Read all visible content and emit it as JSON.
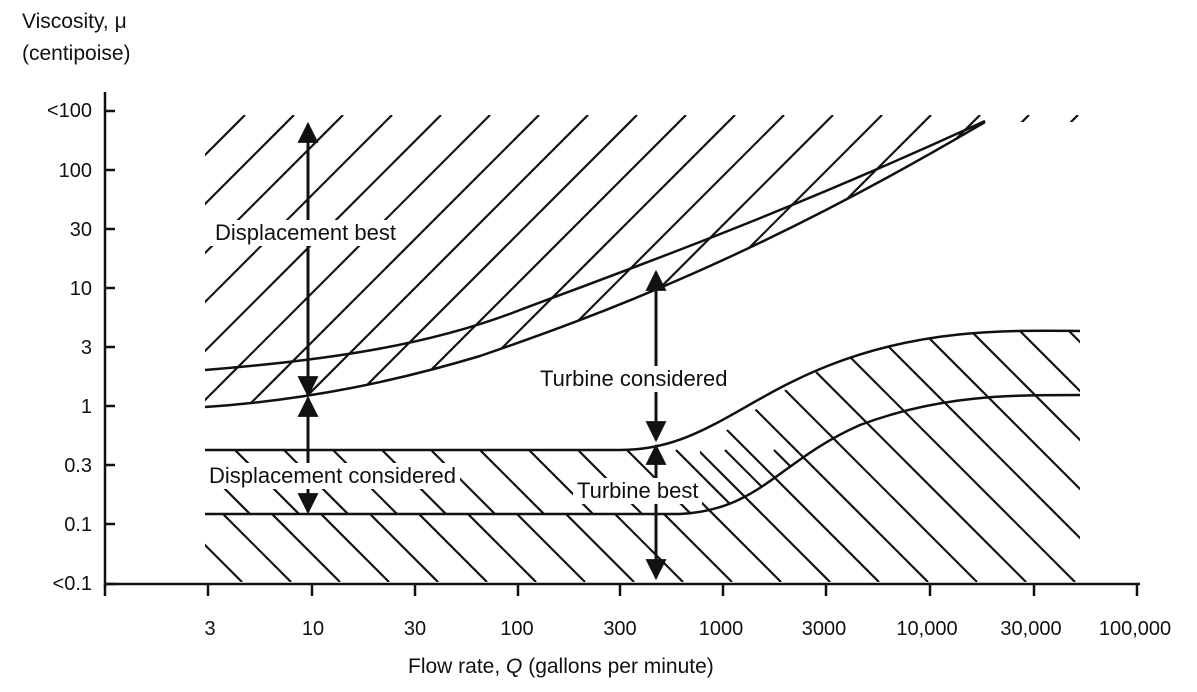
{
  "y_axis": {
    "label_line1": "Viscosity, μ",
    "label_line2": "(centipoise)",
    "ticks": [
      "<100",
      "100",
      "30",
      "10",
      "3",
      "1",
      "0.3",
      "0.1",
      "<0.1"
    ]
  },
  "x_axis": {
    "label_prefix": "Flow rate, ",
    "label_var": "Q",
    "label_suffix": " (gallons per minute)",
    "ticks": [
      "3",
      "10",
      "30",
      "100",
      "300",
      "1000",
      "3000",
      "10,000",
      "30,000",
      "100,000"
    ]
  },
  "regions": {
    "displacement_best": "Displacement best",
    "turbine_considered": "Turbine considered",
    "displacement_considered": "Displacement considered",
    "turbine_best": "Turbine best"
  },
  "colors": {
    "ink": "#111111",
    "background": "#ffffff"
  }
}
